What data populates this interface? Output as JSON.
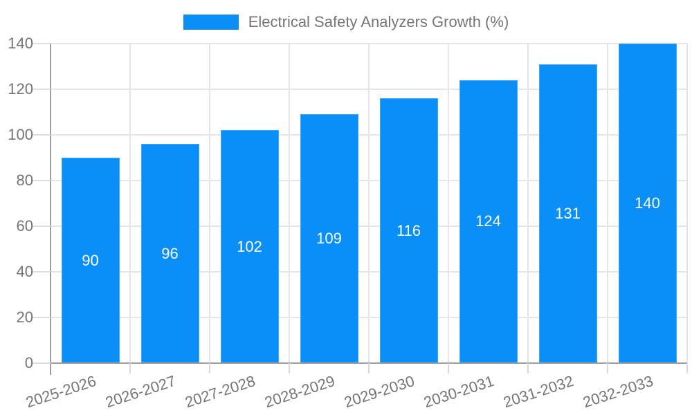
{
  "page": {
    "background_color": "#ffffff",
    "text_color": "#757575"
  },
  "legend": {
    "label": "Electrical Safety Analyzers Growth (%)",
    "swatch_color": "#0a8ff9",
    "position": "top-center"
  },
  "chart_data": {
    "type": "bar",
    "title": "",
    "xlabel": "",
    "ylabel": "",
    "categories": [
      "2025-2026",
      "2026-2027",
      "2027-2028",
      "2028-2029",
      "2029-2030",
      "2030-2031",
      "2031-2032",
      "2032-2033"
    ],
    "series": [
      {
        "name": "Electrical Safety Analyzers Growth (%)",
        "values": [
          90,
          96,
          102,
          109,
          116,
          124,
          131,
          140
        ]
      }
    ],
    "value_labels_shown": true,
    "value_label_color": "#ffffff",
    "ylim": [
      0,
      140
    ],
    "yticks": [
      0,
      20,
      40,
      60,
      80,
      100,
      120,
      140
    ],
    "grid": true,
    "bar_color": "#0a8ff9",
    "axis_color": "#9e9e9e",
    "gridline_color": "#e6e6e6",
    "tick_label_color": "#757575",
    "x_tick_rotation_deg": -18,
    "legend_position": "top-center"
  }
}
